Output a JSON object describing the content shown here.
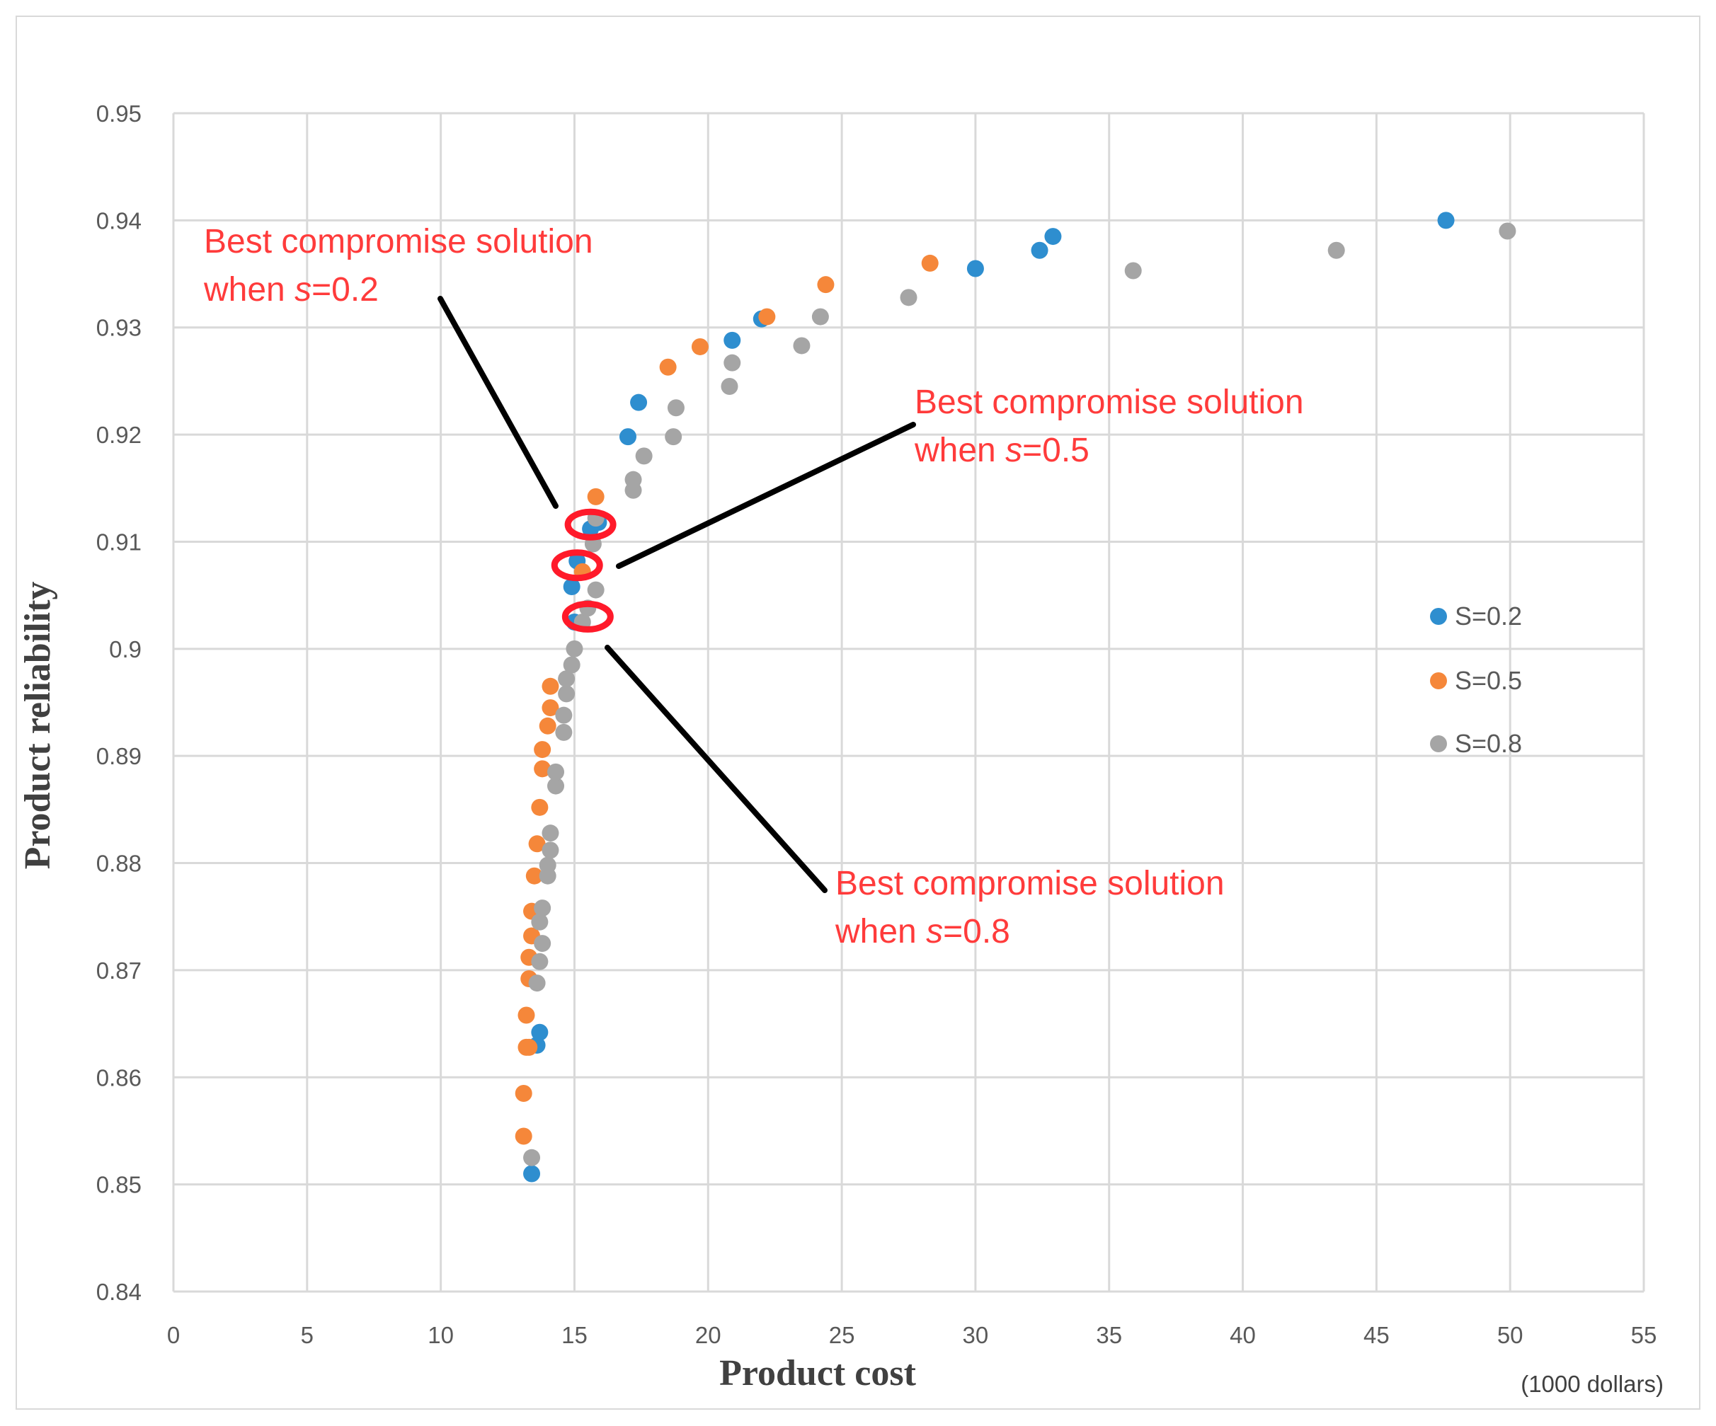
{
  "chart_data": {
    "type": "scatter",
    "title": "",
    "xlabel": "Product  cost",
    "xunit": "(1000 dollars)",
    "ylabel": "Product  reliability",
    "xlim": [
      0,
      55
    ],
    "ylim": [
      0.84,
      0.95
    ],
    "xticks": [
      0,
      5,
      10,
      15,
      20,
      25,
      30,
      35,
      40,
      45,
      50,
      55
    ],
    "yticks": [
      "0.84",
      "0.85",
      "0.86",
      "0.87",
      "0.88",
      "0.89",
      "0.9",
      "0.91",
      "0.92",
      "0.93",
      "0.94",
      "0.95"
    ],
    "grid": true,
    "legend_position": "right",
    "series": [
      {
        "name": "S=0.2",
        "color": "#2e8ecf",
        "points": [
          [
            13.4,
            0.851
          ],
          [
            13.6,
            0.863
          ],
          [
            13.7,
            0.8642
          ],
          [
            15.0,
            0.9025
          ],
          [
            14.9,
            0.9058
          ],
          [
            15.1,
            0.9082
          ],
          [
            15.6,
            0.9112
          ],
          [
            15.9,
            0.9118
          ],
          [
            17.0,
            0.9198
          ],
          [
            17.4,
            0.923
          ],
          [
            20.9,
            0.9288
          ],
          [
            22.0,
            0.9308
          ],
          [
            30.0,
            0.9355
          ],
          [
            32.4,
            0.9372
          ],
          [
            32.9,
            0.9385
          ],
          [
            47.6,
            0.94
          ]
        ]
      },
      {
        "name": "S=0.5",
        "color": "#f5873a",
        "points": [
          [
            13.1,
            0.8545
          ],
          [
            13.1,
            0.8585
          ],
          [
            13.2,
            0.8628
          ],
          [
            13.3,
            0.8628
          ],
          [
            13.2,
            0.8658
          ],
          [
            13.3,
            0.8692
          ],
          [
            13.3,
            0.8712
          ],
          [
            13.4,
            0.8732
          ],
          [
            13.4,
            0.8755
          ],
          [
            13.5,
            0.8788
          ],
          [
            13.6,
            0.8818
          ],
          [
            13.7,
            0.8852
          ],
          [
            13.8,
            0.8888
          ],
          [
            13.8,
            0.8906
          ],
          [
            14.0,
            0.8928
          ],
          [
            14.1,
            0.8945
          ],
          [
            14.1,
            0.8965
          ],
          [
            15.3,
            0.9072
          ],
          [
            15.8,
            0.9142
          ],
          [
            18.5,
            0.9263
          ],
          [
            19.7,
            0.9282
          ],
          [
            22.2,
            0.931
          ],
          [
            24.4,
            0.934
          ],
          [
            28.3,
            0.936
          ]
        ]
      },
      {
        "name": "S=0.8",
        "color": "#a5a5a5",
        "points": [
          [
            13.4,
            0.8525
          ],
          [
            13.6,
            0.8688
          ],
          [
            13.7,
            0.8708
          ],
          [
            13.8,
            0.8725
          ],
          [
            13.7,
            0.8745
          ],
          [
            13.8,
            0.8758
          ],
          [
            14.0,
            0.8788
          ],
          [
            14.0,
            0.8798
          ],
          [
            14.1,
            0.8812
          ],
          [
            14.1,
            0.8828
          ],
          [
            14.3,
            0.8872
          ],
          [
            14.3,
            0.8885
          ],
          [
            14.6,
            0.8922
          ],
          [
            14.6,
            0.8938
          ],
          [
            14.7,
            0.8958
          ],
          [
            14.7,
            0.8972
          ],
          [
            14.9,
            0.8985
          ],
          [
            15.0,
            0.9
          ],
          [
            15.3,
            0.9025
          ],
          [
            15.5,
            0.9038
          ],
          [
            15.8,
            0.9055
          ],
          [
            15.7,
            0.9098
          ],
          [
            15.8,
            0.9122
          ],
          [
            17.2,
            0.9148
          ],
          [
            17.2,
            0.9158
          ],
          [
            17.6,
            0.918
          ],
          [
            18.7,
            0.9198
          ],
          [
            18.8,
            0.9225
          ],
          [
            20.8,
            0.9245
          ],
          [
            20.9,
            0.9267
          ],
          [
            23.5,
            0.9283
          ],
          [
            24.2,
            0.931
          ],
          [
            27.5,
            0.9328
          ],
          [
            35.9,
            0.9353
          ],
          [
            43.5,
            0.9372
          ],
          [
            49.9,
            0.939
          ]
        ]
      }
    ],
    "highlight_markers": [
      {
        "x": 15.6,
        "y": 0.9116
      },
      {
        "x": 15.1,
        "y": 0.9078
      },
      {
        "x": 15.5,
        "y": 0.903
      }
    ],
    "annotations": [
      {
        "line1": "Best compromise solution",
        "prefix": "when ",
        "var": "s",
        "value": "=0.2"
      },
      {
        "line1": "Best compromise solution",
        "prefix": "when ",
        "var": "s",
        "value": "=0.5"
      },
      {
        "line1": "Best compromise solution",
        "prefix": "when ",
        "var": "s",
        "value": "=0.8"
      }
    ]
  }
}
